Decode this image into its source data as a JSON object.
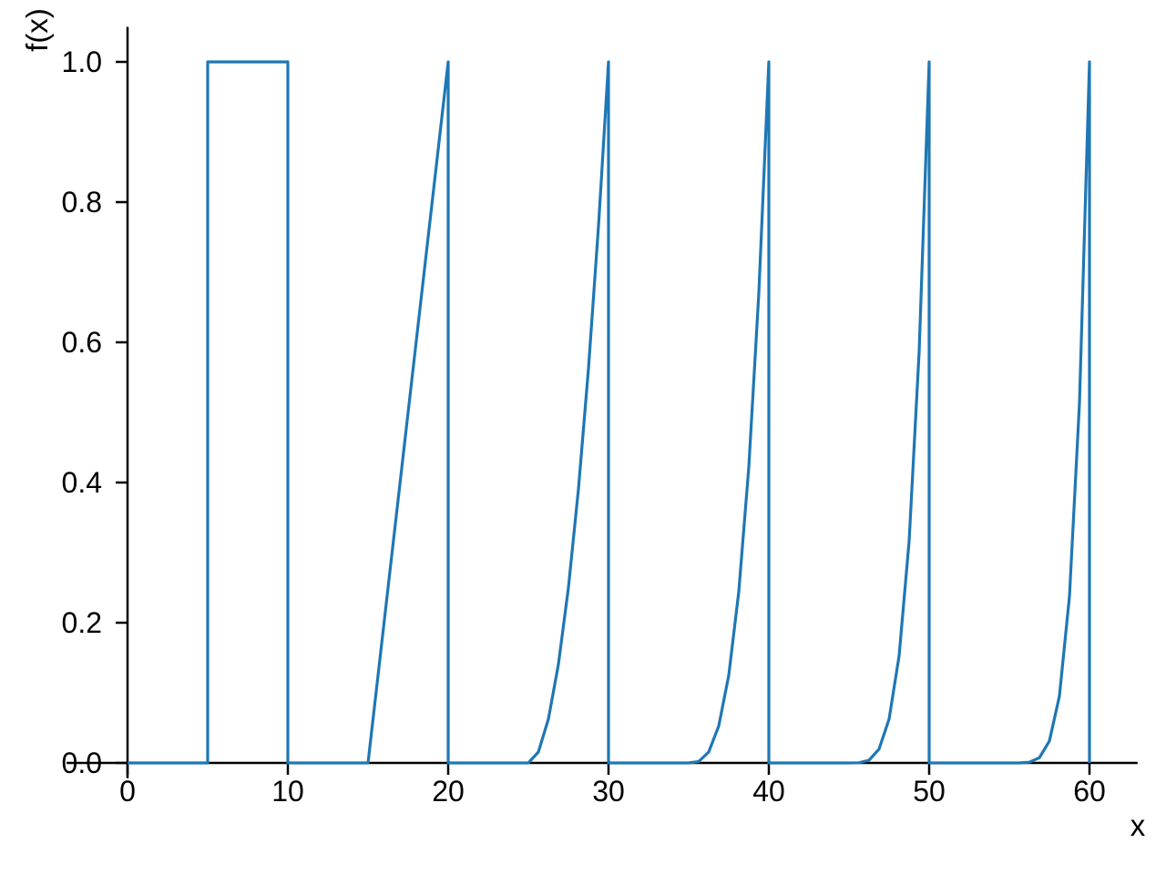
{
  "figure": {
    "background": "#ffffff"
  },
  "chart_data": {
    "type": "line",
    "title": "",
    "xlabel": "x",
    "ylabel": "f(x)",
    "xlim": [
      -3.8,
      63
    ],
    "ylim": [
      -0.022,
      1.05
    ],
    "xticks": {
      "values": [
        0,
        10,
        20,
        30,
        40,
        50,
        60
      ],
      "labels": [
        "0",
        "10",
        "20",
        "30",
        "40",
        "50",
        "60"
      ]
    },
    "yticks": {
      "values": [
        0.0,
        0.2,
        0.4,
        0.6,
        0.8,
        1.0
      ],
      "labels": [
        "0.0",
        "0.2",
        "0.4",
        "0.6",
        "0.8",
        "1.0"
      ]
    },
    "grid": false,
    "legend": null,
    "line_color": "#1f77b4",
    "axis_color": "#000000",
    "line_width": 3.2,
    "series": [
      {
        "name": "f(x)",
        "description": "Piecewise pulse train: f(x) = ((x - start)/5)^power for x in [start, end], 0 elsewhere; curve plotted from x = 0 to x = 60",
        "x_start": 0,
        "x_end": 60,
        "baseline_value": 0,
        "sample_step": 0.625,
        "pulses": [
          {
            "start": 5,
            "end": 10,
            "power": 0,
            "peak": 1.0
          },
          {
            "start": 15,
            "end": 20,
            "power": 1,
            "peak": 1.0
          },
          {
            "start": 25,
            "end": 30,
            "power": 2,
            "peak": 1.0
          },
          {
            "start": 35,
            "end": 40,
            "power": 3,
            "peak": 1.0
          },
          {
            "start": 45,
            "end": 50,
            "power": 4,
            "peak": 1.0
          },
          {
            "start": 55,
            "end": 60,
            "power": 5,
            "peak": 1.0
          }
        ]
      }
    ]
  }
}
